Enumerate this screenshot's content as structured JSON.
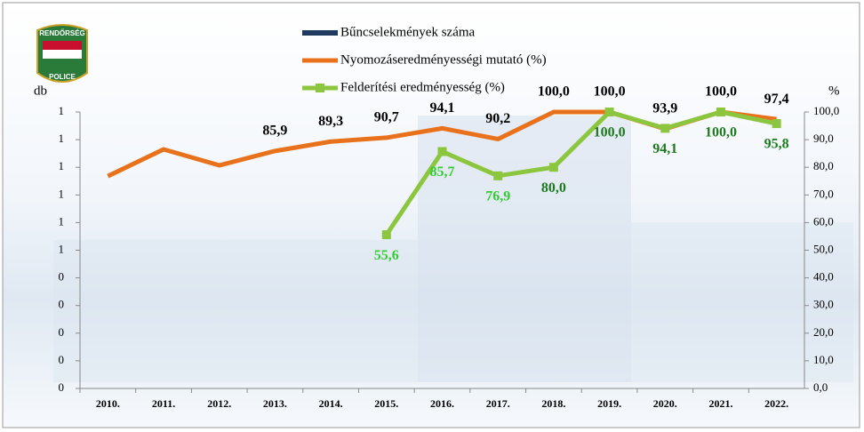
{
  "logo": {
    "top": "RENDŐRSÉG",
    "bottom": "POLICE"
  },
  "chart_data": {
    "type": "line",
    "y_label": "db",
    "y2_label": "%",
    "categories": [
      "2010.",
      "2011.",
      "2012.",
      "2013.",
      "2014.",
      "2015.",
      "2016.",
      "2017.",
      "2018.",
      "2019.",
      "2020.",
      "2021.",
      "2022."
    ],
    "ylim": [
      0,
      1
    ],
    "yticks": [
      {
        "value": 0,
        "label": "0"
      },
      {
        "value": 0.1,
        "label": "0"
      },
      {
        "value": 0.2,
        "label": "0"
      },
      {
        "value": 0.3,
        "label": "0"
      },
      {
        "value": 0.4,
        "label": "0"
      },
      {
        "value": 0.5,
        "label": "1"
      },
      {
        "value": 0.6,
        "label": "1"
      },
      {
        "value": 0.7,
        "label": "1"
      },
      {
        "value": 0.8,
        "label": "1"
      },
      {
        "value": 0.9,
        "label": "1"
      },
      {
        "value": 1,
        "label": "1"
      }
    ],
    "y2lim": [
      0,
      100
    ],
    "y2ticks": [
      {
        "value": 0,
        "label": "0,0"
      },
      {
        "value": 10,
        "label": "10,0"
      },
      {
        "value": 20,
        "label": "20,0"
      },
      {
        "value": 30,
        "label": "30,0"
      },
      {
        "value": 40,
        "label": "40,0"
      },
      {
        "value": 50,
        "label": "50,0"
      },
      {
        "value": 60,
        "label": "60,0"
      },
      {
        "value": 70,
        "label": "70,0"
      },
      {
        "value": 80,
        "label": "80,0"
      },
      {
        "value": 90,
        "label": "90,0"
      },
      {
        "value": 100,
        "label": "100,0"
      }
    ],
    "series": [
      {
        "name": "Bűncselekmények száma",
        "type": "bar",
        "color": "#1f3a5f",
        "values": [
          null,
          null,
          null,
          null,
          null,
          null,
          null,
          null,
          null,
          null,
          null,
          null,
          null
        ]
      },
      {
        "name": "Nyomozáseredményességi mutató (%)",
        "type": "line",
        "axis": "y2",
        "color": "#e8721c",
        "values": [
          76.8,
          86.5,
          80.7,
          85.9,
          89.3,
          90.7,
          94.1,
          90.2,
          100.0,
          100.0,
          93.9,
          100.0,
          97.4
        ],
        "value_labels": [
          null,
          null,
          null,
          "85,9",
          "89,3",
          "90,7",
          "94,1",
          "90,2",
          "100,0",
          "100,0",
          "93,9",
          "100,0",
          "97,4"
        ],
        "value_label_colors": [
          "#000000",
          "#000000",
          "#000000",
          "#000000",
          "#000000",
          "#000000",
          "#000000",
          "#000000",
          "#000000",
          "#000000",
          "#000000",
          "#000000",
          "#000000"
        ]
      },
      {
        "name": "Felderítési eredményesség (%)",
        "type": "line",
        "axis": "y2",
        "color": "#8cc63f",
        "marker": "square",
        "values": [
          null,
          null,
          null,
          null,
          null,
          55.6,
          85.7,
          76.9,
          80.0,
          100.0,
          94.1,
          100.0,
          95.8
        ],
        "value_labels": [
          null,
          null,
          null,
          null,
          null,
          "55,6",
          "85,7",
          "76,9",
          "80,0",
          "100,0",
          "94,1",
          "100,0",
          "95,8"
        ],
        "value_label_colors": [
          "#2e9e2e",
          "#2e9e2e",
          "#2e9e2e",
          "#2e9e2e",
          "#2e9e2e",
          "#33cc33",
          "#33cc33",
          "#33cc33",
          "#1e7a1e",
          "#1e7a1e",
          "#1e7a1e",
          "#1e7a1e",
          "#1e7a1e"
        ]
      }
    ]
  }
}
